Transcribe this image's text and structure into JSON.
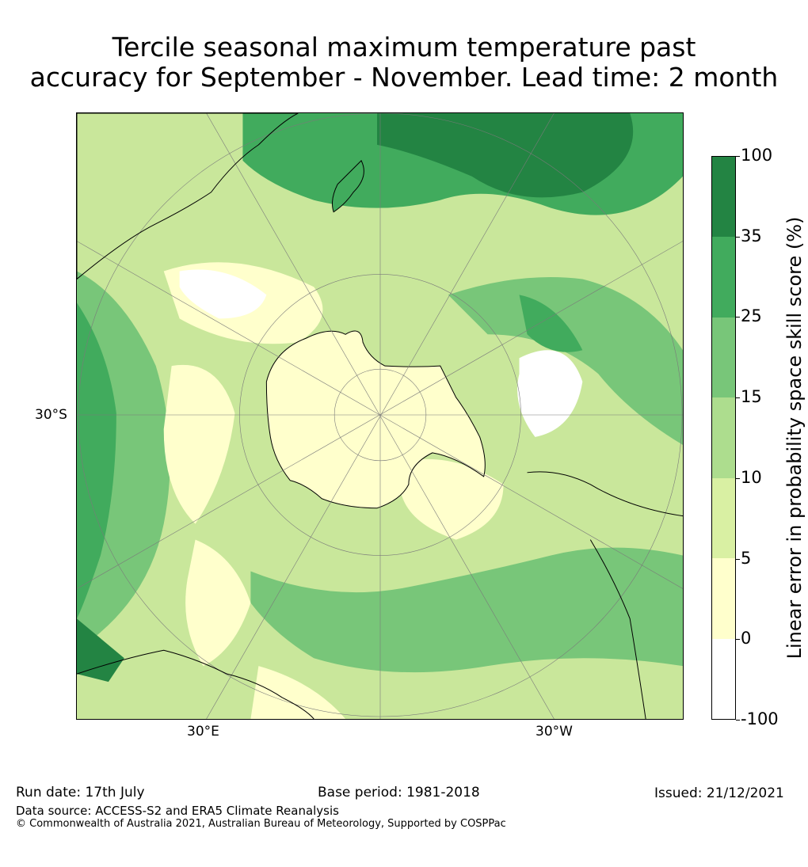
{
  "title": {
    "line1": "Tercile seasonal maximum temperature past",
    "line2": "accuracy for September - November. Lead time: 2 month"
  },
  "map": {
    "projection": "south polar stereographic",
    "labels": {
      "lat": "30°S",
      "lon_east": "30°E",
      "lon_west": "30°W"
    },
    "colors": {
      "ocean_base": "#c9e79b",
      "land_outline": "#000000"
    }
  },
  "colorbar": {
    "label": "Linear error in probability space skill score (%)",
    "ticks": [
      "100",
      "35",
      "25",
      "15",
      "10",
      "5",
      "0",
      "-100"
    ],
    "colors": [
      "#238443",
      "#41ab5d",
      "#78c679",
      "#addd8e",
      "#d9f0a3",
      "#ffffcc",
      "#ffffff"
    ]
  },
  "footer": {
    "run_date": "Run date: 17th July",
    "base_period": "Base period: 1981-2018",
    "issued": "Issued: 21/12/2021",
    "data_source": "Data source: ACCESS-S2 and ERA5 Climate Reanalysis",
    "copyright": "© Commonwealth of Australia 2021, Australian Bureau of Meteorology, Supported by COSPPac"
  }
}
